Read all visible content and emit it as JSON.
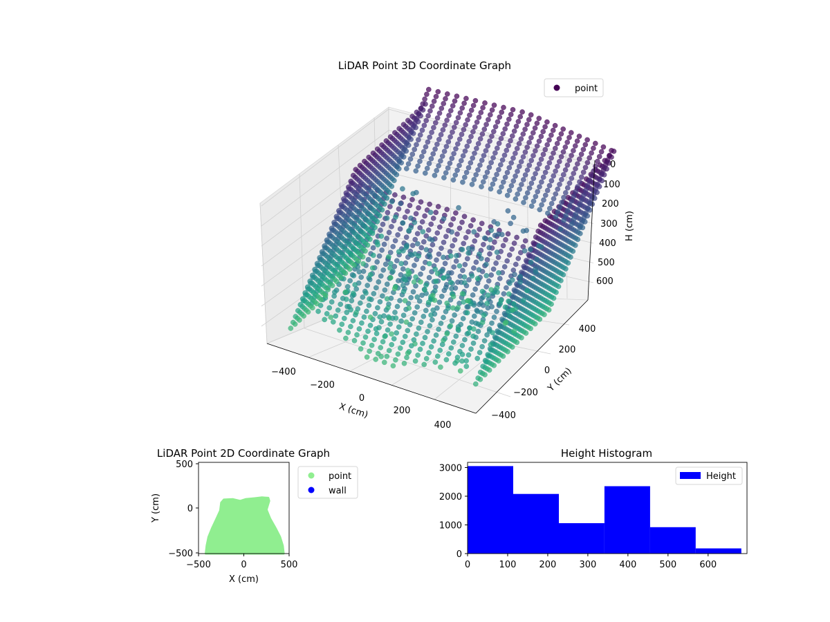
{
  "chart_data": [
    {
      "type": "scatter",
      "projection": "3d",
      "title": "LiDAR Point 3D Coordinate Graph",
      "xlabel": "X (cm)",
      "ylabel": "Y (cm)",
      "zlabel": "H (cm)",
      "xticks": [
        "−400",
        "−200",
        "0",
        "200",
        "400"
      ],
      "yticks": [
        "−400",
        "−200",
        "0",
        "200",
        "400"
      ],
      "zticks": [
        "0",
        "100",
        "200",
        "300",
        "400",
        "500",
        "600"
      ],
      "xlim": [
        -480,
        480
      ],
      "ylim": [
        -500,
        480
      ],
      "zlim": [
        0,
        690
      ],
      "z_inverted": true,
      "grid": true,
      "legend": {
        "placement": "top-right",
        "entries": [
          {
            "label": "point",
            "color": "#440154"
          }
        ]
      },
      "colormap": "viridis",
      "series": [
        {
          "name": "point"
        }
      ]
    },
    {
      "type": "scatter",
      "title": "LiDAR Point 2D Coordinate Graph",
      "xlabel": "X (cm)",
      "ylabel": "Y (cm)",
      "xticks": [
        "−500",
        "0",
        "500"
      ],
      "yticks": [
        "500",
        "0",
        "−500"
      ],
      "xlim": [
        -500,
        500
      ],
      "ylim": [
        -520,
        520
      ],
      "legend": {
        "placement": "outside-right",
        "entries": [
          {
            "label": "point",
            "color": "#90ee90"
          },
          {
            "label": "wall",
            "color": "#0000ff"
          }
        ]
      },
      "series": [
        {
          "name": "point",
          "color": "#90ee90"
        },
        {
          "name": "wall",
          "color": "#0000ff"
        }
      ],
      "outline_profile": [
        [
          -420,
          -520
        ],
        [
          -410,
          -430
        ],
        [
          -390,
          -330
        ],
        [
          -350,
          -230
        ],
        [
          -300,
          -120
        ],
        [
          -260,
          -30
        ],
        [
          -250,
          60
        ],
        [
          -220,
          95
        ],
        [
          -120,
          100
        ],
        [
          -40,
          80
        ],
        [
          20,
          100
        ],
        [
          120,
          110
        ],
        [
          200,
          120
        ],
        [
          270,
          115
        ],
        [
          280,
          80
        ],
        [
          250,
          -20
        ],
        [
          290,
          -120
        ],
        [
          350,
          -230
        ],
        [
          400,
          -330
        ],
        [
          430,
          -430
        ],
        [
          440,
          -520
        ]
      ]
    },
    {
      "type": "bar",
      "subtype": "histogram",
      "title": "Height Histogram",
      "xticks": [
        "0",
        "100",
        "200",
        "300",
        "400",
        "500",
        "600"
      ],
      "yticks": [
        "0",
        "1000",
        "2000",
        "3000"
      ],
      "xlim": [
        0,
        697
      ],
      "ylim": [
        0,
        3180
      ],
      "bin_edges": [
        0,
        113.8,
        227.6,
        341.4,
        455.2,
        569,
        682.8
      ],
      "values": [
        3050,
        2080,
        1060,
        2350,
        920,
        180
      ],
      "legend": {
        "placement": "top-right",
        "entries": [
          {
            "label": "Height",
            "color": "#0000ff"
          }
        ]
      },
      "series": [
        {
          "name": "Height",
          "color": "#0000ff"
        }
      ]
    }
  ]
}
